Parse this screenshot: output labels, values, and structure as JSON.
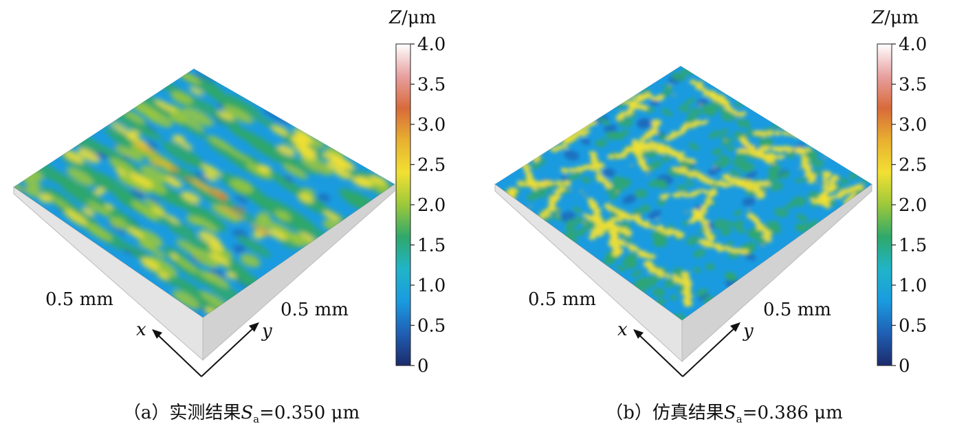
{
  "chart_data": [
    {
      "type": "heatmap",
      "panel_label": "（a）",
      "caption_text": "实测结果",
      "parameter_symbol": "S",
      "parameter_subscript": "a",
      "parameter_value": "=0.350 μm",
      "colorbar_label_var": "Z",
      "colorbar_label_unit": "/μm",
      "colorbar_ticks": [
        "4.0",
        "3.5",
        "3.0",
        "2.5",
        "2.0",
        "1.5",
        "1.0",
        "0.5",
        "0"
      ],
      "colorbar_range": [
        0,
        4.0
      ],
      "x_extent_label": "0.5 mm",
      "y_extent_label": "0.5 mm",
      "x_axis_label": "x",
      "y_axis_label": "y",
      "pattern": "streaks"
    },
    {
      "type": "heatmap",
      "panel_label": "（b）",
      "caption_text": "仿真结果",
      "parameter_symbol": "S",
      "parameter_subscript": "a",
      "parameter_value": "=0.386 μm",
      "colorbar_label_var": "Z",
      "colorbar_label_unit": "/μm",
      "colorbar_ticks": [
        "4.0",
        "3.5",
        "3.0",
        "2.5",
        "2.0",
        "1.5",
        "1.0",
        "0.5",
        "0"
      ],
      "colorbar_range": [
        0,
        4.0
      ],
      "x_extent_label": "0.5 mm",
      "y_extent_label": "0.5 mm",
      "x_axis_label": "x",
      "y_axis_label": "y",
      "pattern": "network"
    }
  ],
  "colors": {
    "colormap": [
      "#1c2a6b",
      "#1f5fb4",
      "#1a9be0",
      "#20b4c8",
      "#2fa86a",
      "#9cc83a",
      "#f2e033",
      "#e8b030",
      "#d86a3a",
      "#e8a0a0",
      "#ffffff"
    ],
    "base_edge": "#c8c8c8"
  }
}
